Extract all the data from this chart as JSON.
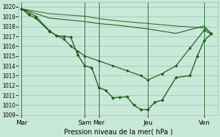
{
  "title": "Pression niveau de la mer( hPa )",
  "bg_color": "#c8e8d8",
  "grid_color": "#98c4ac",
  "line_color": "#1a5c1a",
  "ylim": [
    1009,
    1020.5
  ],
  "yticks": [
    1009,
    1010,
    1011,
    1012,
    1013,
    1014,
    1015,
    1016,
    1017,
    1018,
    1019,
    1020
  ],
  "day_labels": [
    "Mar",
    "Sam",
    "Mer",
    "Jeu",
    "Ven"
  ],
  "day_x": [
    0,
    9,
    11,
    18,
    26
  ],
  "xlim": [
    -0.5,
    28
  ],
  "lines": [
    {
      "x": [
        0,
        1,
        2,
        4,
        5,
        6,
        7,
        8,
        9,
        10,
        11,
        12,
        13,
        14,
        15,
        16,
        17,
        18,
        19,
        20,
        22,
        24,
        25,
        26,
        27
      ],
      "y": [
        1019.8,
        1019.2,
        1018.85,
        1017.5,
        1017.05,
        1017.0,
        1016.9,
        1015.1,
        1014.0,
        1013.8,
        1011.8,
        1011.5,
        1010.75,
        1010.8,
        1010.85,
        1010.0,
        1009.55,
        1009.55,
        1010.3,
        1010.5,
        1012.8,
        1013.0,
        1014.95,
        1016.55,
        1017.25
      ],
      "marker": true,
      "lw": 1.0,
      "ms": 2.2
    },
    {
      "x": [
        0,
        2,
        4,
        5,
        6,
        7,
        8,
        9,
        11,
        13,
        15,
        17,
        18,
        20,
        22,
        24,
        26,
        27
      ],
      "y": [
        1019.8,
        1019.05,
        1017.55,
        1017.05,
        1016.75,
        1016.0,
        1015.5,
        1015.0,
        1014.5,
        1014.0,
        1013.5,
        1013.0,
        1012.55,
        1013.2,
        1014.0,
        1015.8,
        1017.6,
        1017.25
      ],
      "marker": true,
      "lw": 0.9,
      "ms": 2.0
    },
    {
      "x": [
        0,
        4,
        9,
        11,
        14,
        18,
        22,
        26,
        27
      ],
      "y": [
        1019.8,
        1018.85,
        1018.5,
        1018.3,
        1018.1,
        1017.75,
        1017.3,
        1018.05,
        1017.3
      ],
      "marker": false,
      "lw": 0.8,
      "ms": 0
    },
    {
      "x": [
        0,
        4,
        9,
        11,
        14,
        18,
        22,
        26,
        27
      ],
      "y": [
        1019.8,
        1019.3,
        1019.05,
        1018.8,
        1018.55,
        1018.3,
        1018.05,
        1017.85,
        1017.35
      ],
      "marker": false,
      "lw": 0.7,
      "ms": 0
    }
  ]
}
